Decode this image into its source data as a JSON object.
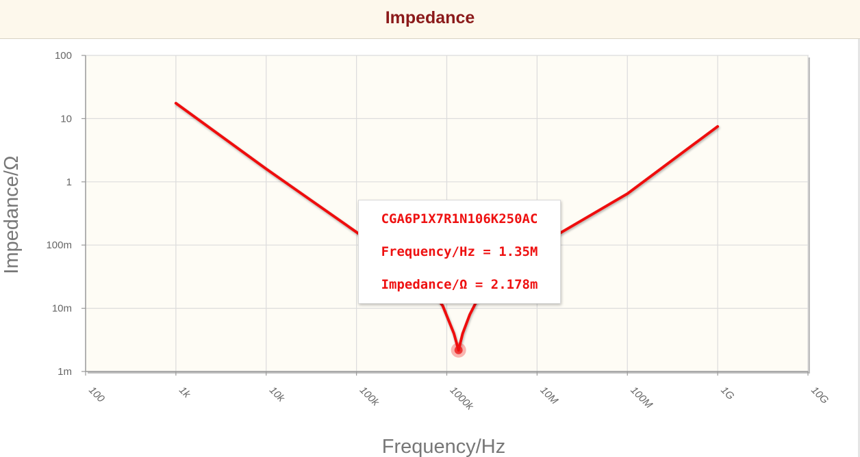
{
  "header": {
    "title": "Impedance"
  },
  "chart_data": {
    "type": "line",
    "title": "Impedance",
    "xlabel": "Frequency/Hz",
    "ylabel": "Impedance/Ω",
    "x_scale": "log",
    "y_scale": "log",
    "xlim": [
      100,
      10000000000
    ],
    "ylim": [
      0.001,
      100
    ],
    "grid": true,
    "x_ticks": [
      {
        "value": 100,
        "label": "100"
      },
      {
        "value": 1000,
        "label": "1k"
      },
      {
        "value": 10000,
        "label": "10k"
      },
      {
        "value": 100000,
        "label": "100k"
      },
      {
        "value": 1000000,
        "label": "1000k"
      },
      {
        "value": 10000000,
        "label": "10M"
      },
      {
        "value": 100000000,
        "label": "100M"
      },
      {
        "value": 1000000000,
        "label": "1G"
      },
      {
        "value": 10000000000,
        "label": "10G"
      }
    ],
    "y_ticks": [
      {
        "value": 0.001,
        "label": "1m"
      },
      {
        "value": 0.01,
        "label": "10m"
      },
      {
        "value": 0.1,
        "label": "100m"
      },
      {
        "value": 1,
        "label": "1"
      },
      {
        "value": 10,
        "label": "10"
      },
      {
        "value": 100,
        "label": "100"
      }
    ],
    "series": [
      {
        "name": "CGA6P1X7R1N106K250AC",
        "color": "#ee1111",
        "x": [
          1000,
          10000,
          100000,
          300000,
          600000,
          900000,
          1200000,
          1350000,
          1500000,
          1800000,
          2500000,
          5000000,
          10000000,
          100000000,
          500000000,
          1000000000
        ],
        "y": [
          17.5,
          1.6,
          0.16,
          0.05,
          0.024,
          0.011,
          0.004,
          0.002178,
          0.004,
          0.008,
          0.02,
          0.05,
          0.095,
          0.65,
          3.6,
          7.5
        ]
      }
    ],
    "highlight": {
      "x": 1350000,
      "y": 0.002178
    }
  },
  "tooltip": {
    "part": "CGA6P1X7R1N106K250AC",
    "frequency": "Frequency/Hz = 1.35M",
    "impedance": "Impedance/Ω = 2.178m"
  }
}
